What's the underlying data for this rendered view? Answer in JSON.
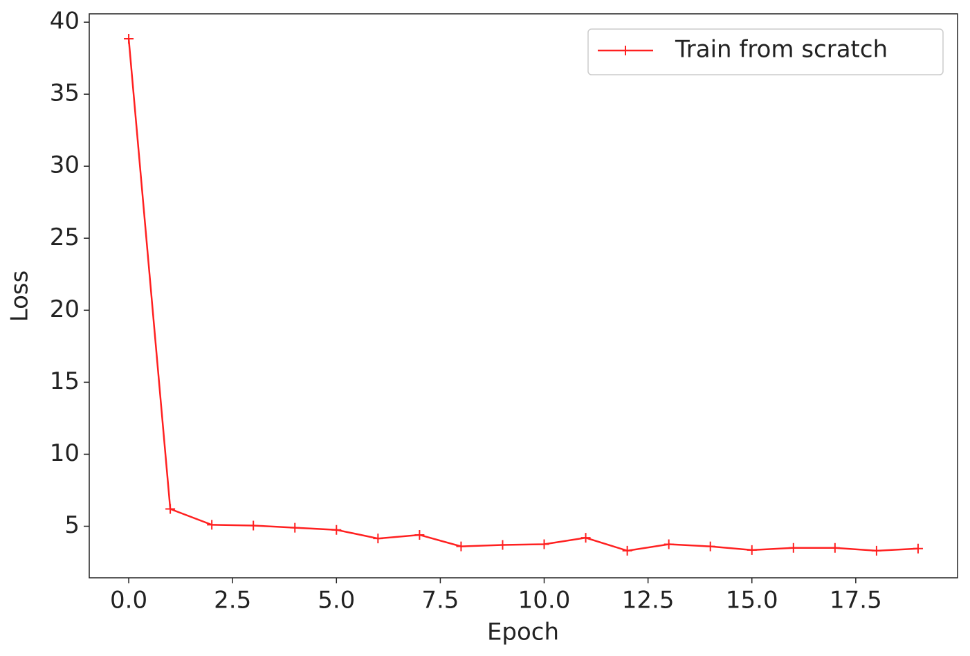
{
  "chart_data": {
    "type": "line",
    "xlabel": "Epoch",
    "ylabel": "Loss",
    "x": [
      0,
      1,
      2,
      3,
      4,
      5,
      6,
      7,
      8,
      9,
      10,
      11,
      12,
      13,
      14,
      15,
      16,
      17,
      18,
      19
    ],
    "series": [
      {
        "name": "Train from scratch",
        "color": "#ff2020",
        "marker": "+",
        "values": [
          38.85,
          6.2,
          5.1,
          5.05,
          4.9,
          4.75,
          4.15,
          4.4,
          3.6,
          3.7,
          3.75,
          4.2,
          3.3,
          3.75,
          3.6,
          3.35,
          3.5,
          3.5,
          3.3,
          3.45
        ]
      }
    ],
    "xlim": [
      -0.95,
      19.95
    ],
    "xticks": [
      {
        "value": 0,
        "label": "0.0"
      },
      2.5,
      {
        "value": 5,
        "label": "5.0"
      },
      7.5,
      {
        "value": 10,
        "label": "10.0"
      },
      12.5,
      {
        "value": 15,
        "label": "15.0"
      },
      17.5
    ],
    "ylim": [
      1.42,
      40.58
    ],
    "yticks": [
      5,
      10,
      15,
      20,
      25,
      30,
      35,
      40
    ],
    "legend": "upper right"
  }
}
